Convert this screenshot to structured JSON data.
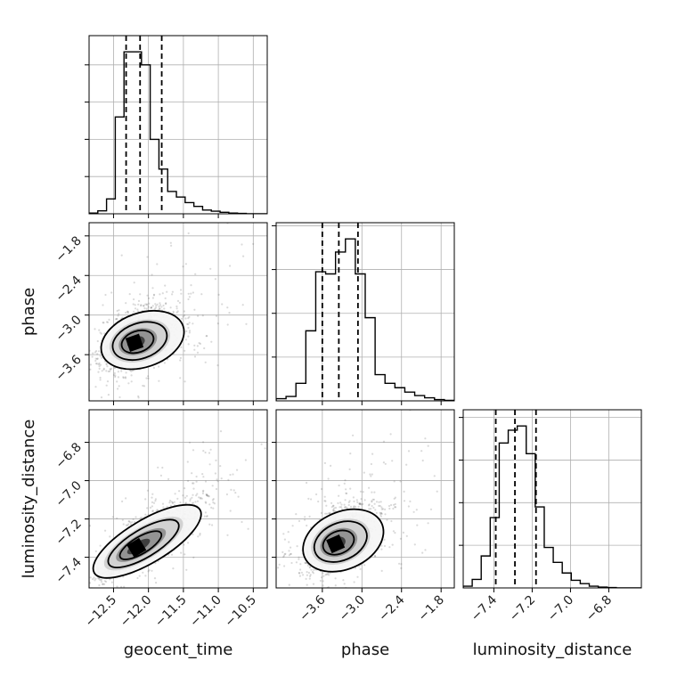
{
  "chart_data": {
    "type": "corner",
    "parameters": [
      "geocent_time",
      "phase",
      "luminosity_distance"
    ],
    "axis_labels": {
      "x": [
        "geocent_time",
        "phase",
        "luminosity_distance"
      ],
      "y": [
        "",
        "phase",
        "luminosity_distance"
      ]
    },
    "ranges": {
      "geocent_time": [
        -12.85,
        -10.3
      ],
      "phase": [
        -4.3,
        -1.6
      ],
      "luminosity_distance": [
        -7.56,
        -6.63
      ]
    },
    "ticks": {
      "geocent_time": [
        -12.5,
        -12.0,
        -11.5,
        -11.0,
        -10.5
      ],
      "phase": [
        -3.6,
        -3.0,
        -2.4,
        -1.8
      ],
      "luminosity_distance": [
        -7.4,
        -7.2,
        -7.0,
        -6.8
      ]
    },
    "tick_labels": {
      "geocent_time": [
        "−12.5",
        "−12.0",
        "−11.5",
        "−11.0",
        "−10.5"
      ],
      "phase": [
        "−3.6",
        "−3.0",
        "−2.4",
        "−1.8"
      ],
      "luminosity_distance": [
        "−7.4",
        "−7.2",
        "−7.0",
        "−6.8"
      ]
    },
    "quantiles": {
      "geocent_time": [
        -12.32,
        -12.12,
        -11.81
      ],
      "phase": [
        -3.6,
        -3.35,
        -3.06
      ],
      "luminosity_distance": [
        -7.39,
        -7.29,
        -7.18
      ]
    },
    "histograms": {
      "geocent_time": {
        "bin_start": -12.85,
        "bin_width": 0.125,
        "counts": [
          2,
          8,
          40,
          260,
          435,
          435,
          400,
          200,
          120,
          60,
          45,
          30,
          20,
          10,
          7,
          4,
          2,
          1,
          0,
          0,
          0
        ]
      },
      "phase": {
        "bin_start": -4.3,
        "bin_width": 0.15,
        "counts": [
          5,
          10,
          40,
          160,
          295,
          290,
          340,
          370,
          290,
          190,
          60,
          40,
          30,
          20,
          12,
          7,
          3,
          1
        ]
      },
      "luminosity_distance": {
        "bin_start": -7.56,
        "bin_width": 0.047,
        "counts": [
          4,
          20,
          75,
          165,
          340,
          370,
          380,
          315,
          190,
          95,
          60,
          35,
          18,
          10,
          4,
          2,
          1,
          0,
          0,
          0
        ]
      }
    },
    "pairs": [
      {
        "x": "geocent_time",
        "y": "phase",
        "center": [
          -12.2,
          -3.42
        ],
        "scale": [
          0.22,
          0.2
        ],
        "correlation": 0.45,
        "contours": [
          {
            "rx": 1.0,
            "ry": 0.9
          },
          {
            "rx": 1.7,
            "ry": 1.5
          },
          {
            "rx": 2.6,
            "ry": 2.3
          }
        ]
      },
      {
        "x": "geocent_time",
        "y": "luminosity_distance",
        "center": [
          -12.17,
          -7.35
        ],
        "scale": [
          0.28,
          0.085
        ],
        "correlation": 0.82,
        "contours": [
          {
            "rx": 1.0,
            "ry": 0.9
          },
          {
            "rx": 1.7,
            "ry": 1.5
          },
          {
            "rx": 2.6,
            "ry": 2.3
          }
        ]
      },
      {
        "x": "phase",
        "y": "luminosity_distance",
        "center": [
          -3.4,
          -7.33
        ],
        "scale": [
          0.22,
          0.075
        ],
        "correlation": 0.5,
        "contours": [
          {
            "rx": 1.0,
            "ry": 0.9
          },
          {
            "rx": 1.7,
            "ry": 1.5
          },
          {
            "rx": 2.6,
            "ry": 2.3
          }
        ]
      }
    ],
    "grid": true,
    "colors": {
      "line": "#000000",
      "grid": "#b0b0b0",
      "points": "#555555"
    }
  }
}
